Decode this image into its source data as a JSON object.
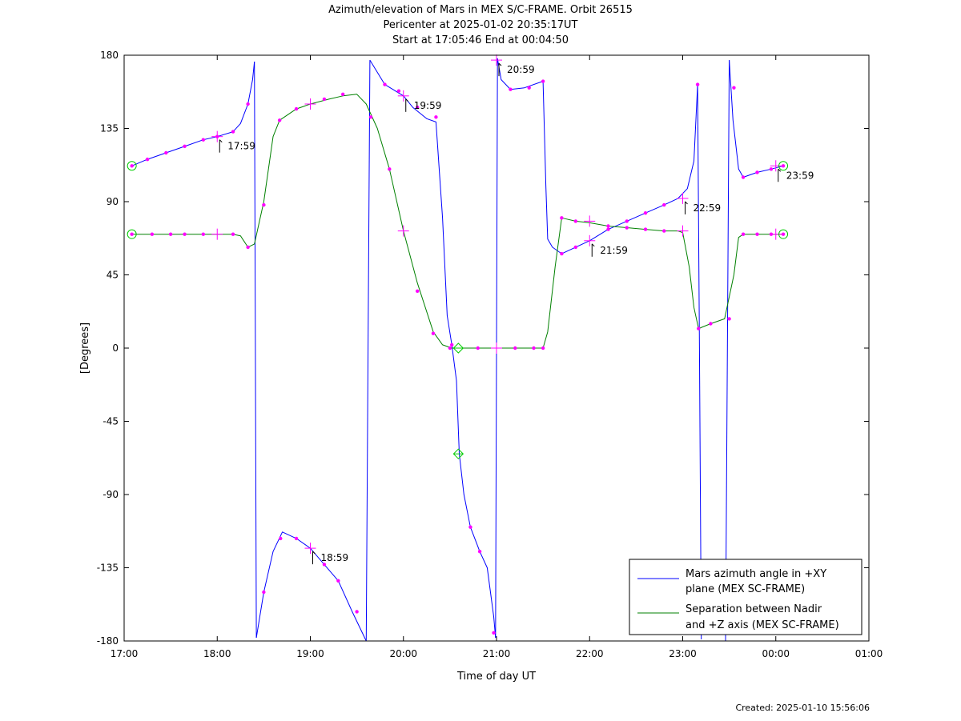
{
  "chart_data": {
    "type": "line",
    "title_lines": [
      "Azimuth/elevation of Mars in MEX S/C-FRAME.  Orbit 26515",
      "Pericenter at 2025-01-02 20:35:17UT",
      "Start at 17:05:46 End at 00:04:50"
    ],
    "xlabel": "Time of day UT",
    "ylabel": "[Degrees]",
    "xlim": [
      17.0,
      25.0
    ],
    "ylim": [
      -180,
      180
    ],
    "x_ticks": [
      {
        "v": 17,
        "label": "17:00"
      },
      {
        "v": 18,
        "label": "18:00"
      },
      {
        "v": 19,
        "label": "19:00"
      },
      {
        "v": 20,
        "label": "20:00"
      },
      {
        "v": 21,
        "label": "21:00"
      },
      {
        "v": 22,
        "label": "22:00"
      },
      {
        "v": 23,
        "label": "23:00"
      },
      {
        "v": 24,
        "label": "00:00"
      },
      {
        "v": 25,
        "label": "01:00"
      }
    ],
    "y_ticks": [
      {
        "v": 180,
        "label": "180"
      },
      {
        "v": 135,
        "label": "135"
      },
      {
        "v": 90,
        "label": "90"
      },
      {
        "v": 45,
        "label": "45"
      },
      {
        "v": 0,
        "label": "0"
      },
      {
        "v": -45,
        "label": "-45"
      },
      {
        "v": -90,
        "label": "-90"
      },
      {
        "v": -135,
        "label": "-135"
      },
      {
        "v": -180,
        "label": "-180"
      }
    ],
    "legend_position": "bottom-right",
    "series": [
      {
        "name": "Mars azimuth angle in +XY plane (MEX SC-FRAME)",
        "legend_lines": [
          "Mars azimuth angle in +XY",
          "plane (MEX SC-FRAME)"
        ],
        "color": "#0000ff",
        "segments": [
          [
            [
              17.083,
              112
            ],
            [
              17.25,
              116
            ],
            [
              17.45,
              120
            ],
            [
              17.65,
              124
            ],
            [
              17.85,
              128
            ],
            [
              18.0,
              130
            ],
            [
              18.17,
              133
            ],
            [
              18.25,
              138
            ],
            [
              18.33,
              150
            ],
            [
              18.38,
              165
            ],
            [
              18.4,
              176
            ]
          ],
          [
            [
              18.4,
              176
            ],
            [
              18.41,
              0
            ],
            [
              18.42,
              -178
            ]
          ],
          [
            [
              18.42,
              -178
            ],
            [
              18.5,
              -150
            ],
            [
              18.6,
              -125
            ],
            [
              18.7,
              -113
            ],
            [
              18.85,
              -117
            ],
            [
              19.0,
              -123
            ],
            [
              19.15,
              -133
            ],
            [
              19.3,
              -143
            ],
            [
              19.45,
              -162
            ],
            [
              19.6,
              -180
            ]
          ],
          [
            [
              19.6,
              -180
            ],
            [
              19.62,
              0
            ],
            [
              19.64,
              177
            ]
          ],
          [
            [
              19.64,
              177
            ],
            [
              19.8,
              162
            ],
            [
              20.0,
              155
            ],
            [
              20.1,
              148
            ],
            [
              20.25,
              141
            ],
            [
              20.35,
              139
            ],
            [
              20.42,
              80
            ],
            [
              20.47,
              20
            ],
            [
              20.52,
              2
            ],
            [
              20.57,
              -20
            ],
            [
              20.6,
              -65
            ],
            [
              20.65,
              -90
            ],
            [
              20.72,
              -110
            ],
            [
              20.82,
              -125
            ],
            [
              20.9,
              -135
            ],
            [
              20.97,
              -165
            ],
            [
              20.99,
              -178
            ]
          ],
          [
            [
              20.99,
              -178
            ],
            [
              21.0,
              0
            ],
            [
              21.01,
              178
            ]
          ],
          [
            [
              21.01,
              178
            ],
            [
              21.05,
              165
            ],
            [
              21.15,
              159
            ],
            [
              21.3,
              160
            ],
            [
              21.5,
              164
            ],
            [
              21.53,
              100
            ],
            [
              21.55,
              67
            ],
            [
              21.6,
              62
            ],
            [
              21.7,
              58
            ],
            [
              21.85,
              62
            ],
            [
              22.0,
              66
            ],
            [
              22.2,
              73
            ],
            [
              22.4,
              78
            ],
            [
              22.6,
              83
            ],
            [
              22.8,
              88
            ],
            [
              22.95,
              92
            ],
            [
              23.05,
              98
            ],
            [
              23.12,
              115
            ],
            [
              23.16,
              162
            ]
          ],
          [
            [
              23.16,
              162
            ],
            [
              23.18,
              0
            ],
            [
              23.2,
              -179
            ]
          ],
          [
            [
              23.46,
              -180
            ],
            [
              23.48,
              0
            ],
            [
              23.5,
              177
            ]
          ],
          [
            [
              23.5,
              177
            ],
            [
              23.54,
              140
            ],
            [
              23.6,
              110
            ],
            [
              23.65,
              105
            ],
            [
              23.8,
              108
            ],
            [
              23.95,
              110
            ],
            [
              24.08,
              112
            ]
          ]
        ],
        "dots": [
          [
            17.083,
            112
          ],
          [
            17.25,
            116
          ],
          [
            17.45,
            120
          ],
          [
            17.65,
            124
          ],
          [
            17.85,
            128
          ],
          [
            18.0,
            130
          ],
          [
            18.17,
            133
          ],
          [
            18.33,
            150
          ],
          [
            18.5,
            -150
          ],
          [
            18.68,
            -117
          ],
          [
            18.85,
            -117
          ],
          [
            19.15,
            -133
          ],
          [
            19.3,
            -143
          ],
          [
            19.5,
            -162
          ],
          [
            19.8,
            162
          ],
          [
            19.95,
            158
          ],
          [
            20.15,
            148
          ],
          [
            20.35,
            142
          ],
          [
            20.52,
            2
          ],
          [
            20.72,
            -110
          ],
          [
            20.82,
            -125
          ],
          [
            20.97,
            -175
          ],
          [
            21.15,
            159
          ],
          [
            21.35,
            160
          ],
          [
            21.5,
            164
          ],
          [
            21.7,
            58
          ],
          [
            21.85,
            62
          ],
          [
            22.2,
            73
          ],
          [
            22.4,
            78
          ],
          [
            22.6,
            83
          ],
          [
            22.8,
            88
          ],
          [
            23.16,
            162
          ],
          [
            23.55,
            160
          ],
          [
            23.65,
            105
          ],
          [
            23.8,
            108
          ],
          [
            23.95,
            110
          ],
          [
            24.08,
            112
          ]
        ],
        "crosses": [
          [
            18.0,
            130
          ],
          [
            19.0,
            -123
          ],
          [
            20.0,
            155
          ],
          [
            21.0,
            177
          ],
          [
            22.0,
            66
          ],
          [
            23.0,
            92
          ],
          [
            24.0,
            112
          ]
        ]
      },
      {
        "name": "Separation between Nadir and +Z axis (MEX SC-FRAME)",
        "legend_lines": [
          "Separation between Nadir",
          "and +Z axis (MEX SC-FRAME)"
        ],
        "color": "#008000",
        "segments": [
          [
            [
              17.083,
              70
            ],
            [
              17.25,
              70
            ],
            [
              17.5,
              70
            ],
            [
              17.65,
              70
            ],
            [
              17.85,
              70
            ],
            [
              18.0,
              70
            ],
            [
              18.17,
              70
            ],
            [
              18.25,
              69
            ],
            [
              18.33,
              62
            ],
            [
              18.4,
              64
            ],
            [
              18.5,
              90
            ],
            [
              18.6,
              130
            ],
            [
              18.67,
              140
            ],
            [
              18.85,
              147
            ],
            [
              19.0,
              150
            ],
            [
              19.2,
              153
            ],
            [
              19.35,
              155
            ],
            [
              19.5,
              156
            ],
            [
              19.6,
              150
            ],
            [
              19.72,
              135
            ],
            [
              19.85,
              110
            ],
            [
              20.0,
              72
            ],
            [
              20.15,
              40
            ],
            [
              20.32,
              10
            ],
            [
              20.42,
              2
            ],
            [
              20.52,
              0
            ],
            [
              20.6,
              0
            ],
            [
              20.8,
              0
            ],
            [
              21.0,
              0
            ],
            [
              21.2,
              0
            ],
            [
              21.4,
              0
            ],
            [
              21.5,
              0
            ],
            [
              21.55,
              10
            ],
            [
              21.63,
              50
            ],
            [
              21.7,
              80
            ],
            [
              21.85,
              78
            ],
            [
              22.0,
              77
            ],
            [
              22.2,
              75
            ],
            [
              22.4,
              74
            ],
            [
              22.6,
              73
            ],
            [
              22.8,
              72
            ],
            [
              22.95,
              72
            ],
            [
              23.0,
              71
            ],
            [
              23.07,
              50
            ],
            [
              23.12,
              25
            ],
            [
              23.17,
              12
            ],
            [
              23.3,
              15
            ],
            [
              23.45,
              18
            ],
            [
              23.55,
              45
            ],
            [
              23.6,
              68
            ],
            [
              23.65,
              70
            ],
            [
              23.8,
              70
            ],
            [
              23.95,
              70
            ],
            [
              24.08,
              70
            ]
          ]
        ],
        "dots": [
          [
            17.083,
            70
          ],
          [
            17.3,
            70
          ],
          [
            17.5,
            70
          ],
          [
            17.65,
            70
          ],
          [
            17.85,
            70
          ],
          [
            18.17,
            70
          ],
          [
            18.33,
            62
          ],
          [
            18.5,
            88
          ],
          [
            18.67,
            140
          ],
          [
            18.85,
            147
          ],
          [
            19.15,
            153
          ],
          [
            19.35,
            156
          ],
          [
            19.65,
            142
          ],
          [
            19.85,
            110
          ],
          [
            20.15,
            35
          ],
          [
            20.32,
            9
          ],
          [
            20.5,
            0
          ],
          [
            20.8,
            0
          ],
          [
            21.2,
            0
          ],
          [
            21.4,
            0
          ],
          [
            21.5,
            0
          ],
          [
            21.7,
            80
          ],
          [
            21.85,
            78
          ],
          [
            22.2,
            75
          ],
          [
            22.4,
            74
          ],
          [
            22.6,
            73
          ],
          [
            22.8,
            72
          ],
          [
            23.17,
            12
          ],
          [
            23.3,
            15
          ],
          [
            23.5,
            18
          ],
          [
            23.65,
            70
          ],
          [
            23.8,
            70
          ],
          [
            23.95,
            70
          ],
          [
            24.08,
            70
          ]
        ],
        "crosses": [
          [
            18.0,
            70
          ],
          [
            19.0,
            150
          ],
          [
            20.0,
            72
          ],
          [
            21.0,
            0
          ],
          [
            22.0,
            78
          ],
          [
            23.0,
            72
          ],
          [
            24.0,
            70
          ]
        ]
      }
    ],
    "markers": {
      "start_circles": [
        [
          17.083,
          112
        ],
        [
          17.083,
          70
        ]
      ],
      "end_circles": [
        [
          24.08,
          112
        ],
        [
          24.08,
          70
        ]
      ],
      "pericenter_diamonds": [
        [
          20.59,
          0
        ],
        [
          20.59,
          -65
        ]
      ]
    },
    "annotations": [
      {
        "x": 18.0,
        "y": 130,
        "label": "17:59"
      },
      {
        "x": 19.0,
        "y": -123,
        "label": "18:59"
      },
      {
        "x": 20.0,
        "y": 155,
        "label": "19:59"
      },
      {
        "x": 21.0,
        "y": 177,
        "label": "20:59"
      },
      {
        "x": 22.0,
        "y": 66,
        "label": "21:59"
      },
      {
        "x": 23.0,
        "y": 92,
        "label": "22:59"
      },
      {
        "x": 24.0,
        "y": 112,
        "label": "23:59"
      }
    ]
  },
  "footer": {
    "created": "Created: 2025-01-10 15:56:06"
  }
}
